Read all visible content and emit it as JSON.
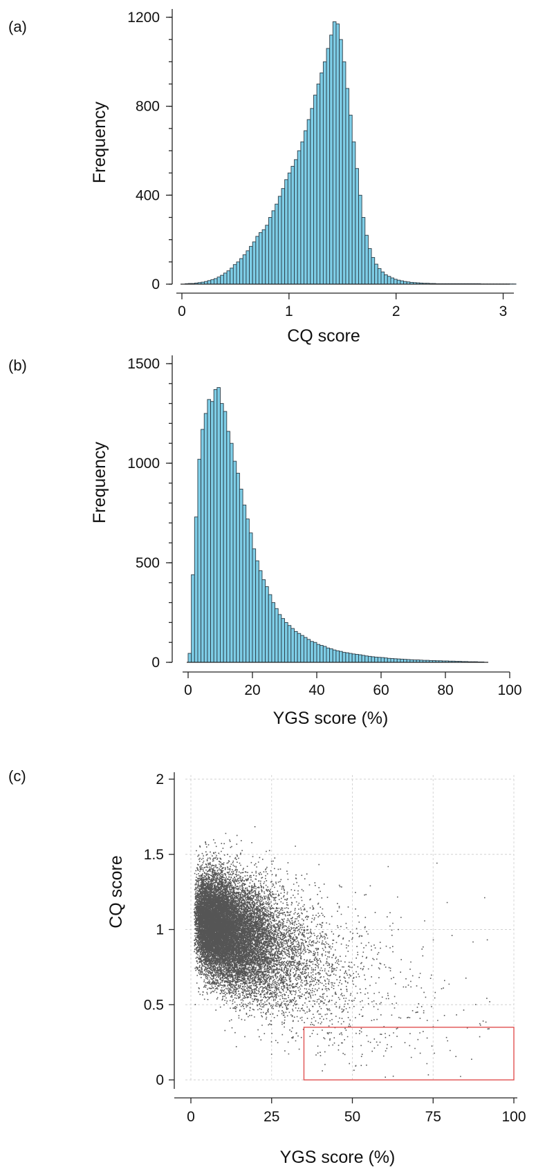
{
  "chart_data": [
    {
      "panel_label": "(a)",
      "type": "bar",
      "subtype": "histogram",
      "xlabel": "CQ score",
      "ylabel": "Frequency",
      "xlim": [
        0,
        3.1
      ],
      "ylim": [
        0,
        1200
      ],
      "xticks": [
        "0",
        "1",
        "2",
        "3"
      ],
      "yticks": [
        "0",
        "400",
        "800",
        "1200"
      ],
      "bin_width": 0.03,
      "bin_start": 0.03,
      "values": [
        2,
        3,
        3,
        5,
        7,
        9,
        12,
        16,
        20,
        25,
        32,
        40,
        50,
        60,
        72,
        88,
        100,
        115,
        132,
        150,
        170,
        190,
        215,
        232,
        245,
        265,
        300,
        330,
        360,
        395,
        430,
        470,
        500,
        530,
        560,
        600,
        640,
        690,
        740,
        790,
        850,
        900,
        950,
        1000,
        1060,
        1120,
        1180,
        1170,
        1100,
        1000,
        880,
        760,
        640,
        520,
        400,
        300,
        220,
        160,
        120,
        90,
        70,
        55,
        42,
        35,
        28,
        22,
        18,
        15,
        12,
        10,
        8,
        7,
        6,
        5,
        4,
        4,
        3,
        3,
        2,
        2,
        2,
        2,
        2,
        2,
        2,
        2,
        2,
        2,
        2,
        2,
        2,
        2,
        1,
        1,
        1,
        1,
        1,
        1,
        1,
        1,
        1,
        1,
        1
      ],
      "bar_color": "#7ecde6",
      "edge_color": "#2a3a44",
      "grid": false
    },
    {
      "panel_label": "(b)",
      "type": "bar",
      "subtype": "histogram",
      "xlabel": "YGS score (%)",
      "ylabel": "Frequency",
      "xlim": [
        0,
        100
      ],
      "ylim": [
        0,
        1500
      ],
      "xticks": [
        "0",
        "20",
        "40",
        "60",
        "80",
        "100"
      ],
      "yticks": [
        "0",
        "500",
        "1000",
        "1500"
      ],
      "bin_width": 1,
      "bin_start": 0,
      "values": [
        45,
        440,
        730,
        1020,
        1170,
        1250,
        1320,
        1310,
        1370,
        1380,
        1300,
        1260,
        1160,
        1100,
        1010,
        950,
        870,
        790,
        720,
        650,
        570,
        510,
        460,
        415,
        380,
        340,
        300,
        270,
        240,
        220,
        200,
        185,
        170,
        155,
        145,
        135,
        125,
        115,
        105,
        100,
        90,
        85,
        80,
        72,
        68,
        62,
        58,
        55,
        50,
        48,
        45,
        42,
        40,
        38,
        35,
        32,
        30,
        28,
        26,
        25,
        24,
        22,
        20,
        19,
        18,
        17,
        16,
        15,
        14,
        13,
        12,
        12,
        11,
        10,
        10,
        9,
        9,
        8,
        8,
        7,
        7,
        6,
        6,
        5,
        5,
        4,
        4,
        3,
        3,
        3,
        2,
        2
      ],
      "bar_color": "#7ecde6",
      "edge_color": "#2a3a44",
      "grid": false
    },
    {
      "panel_label": "(c)",
      "type": "scatter",
      "xlabel": "YGS score (%)",
      "ylabel": "CQ score",
      "xlim": [
        0,
        100
      ],
      "ylim": [
        0,
        2
      ],
      "xticks": [
        "0",
        "25",
        "50",
        "75",
        "100"
      ],
      "yticks": [
        "0",
        "0.5",
        "1",
        "1.5",
        "2"
      ],
      "grid": true,
      "point_color": "#555555",
      "point_count": 18000,
      "highlight_box": {
        "x": [
          35,
          100
        ],
        "y": [
          0,
          0.35
        ],
        "color": "#e05050"
      }
    }
  ]
}
